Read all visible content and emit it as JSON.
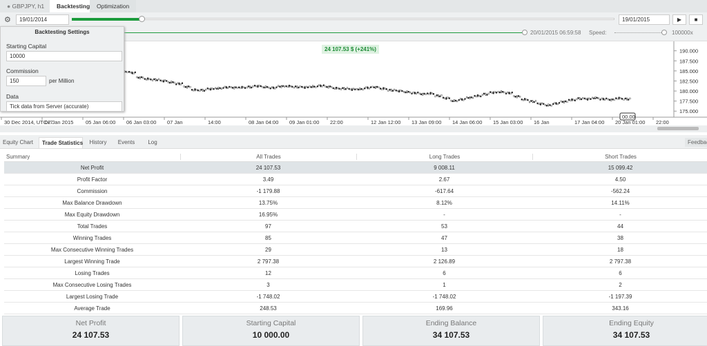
{
  "tabs": [
    "GBPJPY, h1",
    "Backtesting",
    "Optimization"
  ],
  "toolbar": {
    "start_date": "19/01/2014",
    "end_date": "19/01/2015",
    "progress_time": "20/01/2015 06:59:58",
    "speed_label": "Speed:",
    "speed_value": "100000x"
  },
  "settings": {
    "title": "Backtesting Settings",
    "starting_capital_label": "Starting Capital",
    "starting_capital": "10000",
    "commission_label": "Commission",
    "commission": "150",
    "commission_unit": "per Million",
    "data_label": "Data",
    "data": "Tick data from Server (accurate)"
  },
  "chart": {
    "badge": "24 107.53 $ (+241%)",
    "price_marker": "00.00",
    "ylim": [
      173.5,
      192
    ],
    "yticks": [
      {
        "value": 190,
        "label": "190.000"
      },
      {
        "value": 187.5,
        "label": "187.500"
      },
      {
        "value": 185,
        "label": "185.000"
      },
      {
        "value": 182.5,
        "label": "182.500"
      },
      {
        "value": 180,
        "label": "180.000"
      },
      {
        "value": 177.5,
        "label": "177.500"
      },
      {
        "value": 175,
        "label": "175.000"
      }
    ],
    "time_labels": [
      "30 Dec 2014, UTC+7",
      "02 Jan 2015",
      "05 Jan 06:00",
      "06 Jan 03:00",
      "07 Jan",
      "14:00",
      "08 Jan 04:00",
      "09 Jan 01:00",
      "22:00",
      "12 Jan 12:00",
      "13 Jan 09:00",
      "14 Jan 06:00",
      "15 Jan 03:00",
      "16 Jan",
      "17 Jan 04:00",
      "20 Jan 01:00",
      "22:00"
    ],
    "prices": [
      184.8,
      184.5,
      183.3,
      183.0,
      182.8,
      182.5,
      182.2,
      181.8,
      181.0,
      180.3,
      180.2,
      180.5,
      180.7,
      180.9,
      180.8,
      180.9,
      181.0,
      181.2,
      181.0,
      180.8,
      181.1,
      181.2,
      181.0,
      180.9,
      181.1,
      181.3,
      181.0,
      180.7,
      180.6,
      180.4,
      180.5,
      180.8,
      180.9,
      180.6,
      180.2,
      180.0,
      179.8,
      179.5,
      179.2,
      179.4,
      178.8,
      178.2,
      177.6,
      177.9,
      178.3,
      178.8,
      179.2,
      179.6,
      179.8,
      179.5,
      178.6,
      177.9,
      177.4,
      176.8,
      176.5,
      176.9,
      177.3,
      177.8,
      178.1,
      178.0,
      178.3,
      178.0,
      177.8,
      178.2,
      178.0
    ]
  },
  "bottom_tabs": [
    "Equity Chart",
    "Trade Statistics",
    "History",
    "Events",
    "Log"
  ],
  "feedback": "Feedback",
  "table": {
    "columns": [
      "Summary",
      "All Trades",
      "Long Trades",
      "Short Trades"
    ],
    "rows": [
      [
        "Net Profit",
        "24 107.53",
        "9 008.11",
        "15 099.42"
      ],
      [
        "Profit Factor",
        "3.49",
        "2.67",
        "4.50"
      ],
      [
        "Commission",
        "-1 179.88",
        "-617.64",
        "-562.24"
      ],
      [
        "Max Balance Drawdown",
        "13.75%",
        "8.12%",
        "14.11%"
      ],
      [
        "Max Equity Drawdown",
        "16.95%",
        "-",
        "-"
      ],
      [
        "Total Trades",
        "97",
        "53",
        "44"
      ],
      [
        "Winning Trades",
        "85",
        "47",
        "38"
      ],
      [
        "Max Consecutive Winning Trades",
        "29",
        "13",
        "18"
      ],
      [
        "Largest Winning Trade",
        "2 797.38",
        "2 126.89",
        "2 797.38"
      ],
      [
        "Losing Trades",
        "12",
        "6",
        "6"
      ],
      [
        "Max Consecutive Losing Trades",
        "3",
        "1",
        "2"
      ],
      [
        "Largest Losing Trade",
        "-1 748.02",
        "-1 748.02",
        "-1 197.39"
      ],
      [
        "Average Trade",
        "248.53",
        "169.96",
        "343.16"
      ]
    ]
  },
  "cards": [
    {
      "label": "Net Profit",
      "value": "24 107.53"
    },
    {
      "label": "Starting Capital",
      "value": "10 000.00"
    },
    {
      "label": "Ending Balance",
      "value": "34 107.53"
    },
    {
      "label": "Ending Equity",
      "value": "34 107.53"
    }
  ]
}
